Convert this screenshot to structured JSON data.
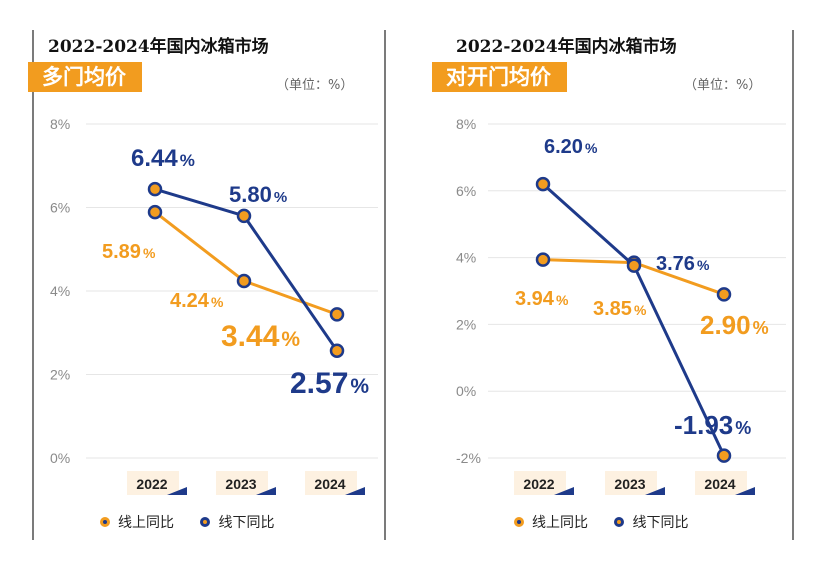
{
  "chart_data": [
    {
      "type": "line",
      "panel_title": "2022-2024年国内冰箱市场",
      "subtitle": "多门均价",
      "unit": "（单位：%）",
      "categories": [
        "2022",
        "2023",
        "2024"
      ],
      "y_ticks": [
        "8%",
        "6%",
        "4%",
        "2%",
        "0%"
      ],
      "ylim": [
        0,
        8
      ],
      "series": [
        {
          "name": "线上同比",
          "values": [
            5.89,
            4.24,
            3.44
          ],
          "labels": [
            "5.89",
            "4.24",
            "3.44"
          ],
          "color": "#f29c1f"
        },
        {
          "name": "线下同比",
          "values": [
            6.44,
            5.8,
            2.57
          ],
          "labels": [
            "6.44",
            "5.80",
            "2.57"
          ],
          "color": "#1e3a8a"
        }
      ],
      "percent_sign": "%",
      "grid": true,
      "legend": "bottom"
    },
    {
      "type": "line",
      "panel_title": "2022-2024年国内冰箱市场",
      "subtitle": "对开门均价",
      "unit": "（单位：%）",
      "categories": [
        "2022",
        "2023",
        "2024"
      ],
      "y_ticks": [
        "8%",
        "6%",
        "4%",
        "2%",
        "0%",
        "-2%"
      ],
      "ylim": [
        -2,
        8
      ],
      "series": [
        {
          "name": "线上同比",
          "values": [
            3.94,
            3.85,
            2.9
          ],
          "labels": [
            "3.94",
            "3.85",
            "2.90"
          ],
          "color": "#f29c1f"
        },
        {
          "name": "线下同比",
          "values": [
            6.2,
            3.76,
            -1.93
          ],
          "labels": [
            "6.20",
            "3.76",
            "-1.93"
          ],
          "color": "#1e3a8a"
        }
      ],
      "percent_sign": "%",
      "grid": true,
      "legend": "bottom"
    }
  ],
  "colors": {
    "online": "#f29c1f",
    "offline": "#1e3a8a",
    "badge": "#f29c1f"
  }
}
